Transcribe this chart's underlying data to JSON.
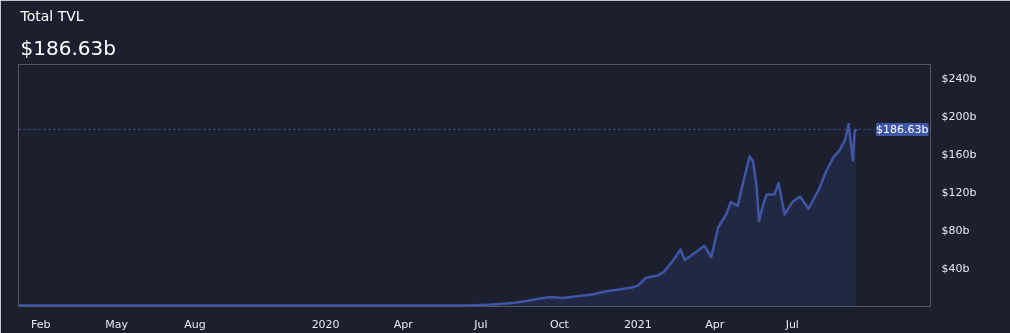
{
  "chart_data": {
    "type": "area",
    "title": "Total TVL",
    "subtitle": "$186.63b",
    "x": [
      "2019-01-06",
      "2019-03-01",
      "2019-05-01",
      "2019-07-01",
      "2019-09-01",
      "2019-11-01",
      "2020-01-01",
      "2020-03-01",
      "2020-05-01",
      "2020-06-15",
      "2020-07-15",
      "2020-08-10",
      "2020-08-25",
      "2020-09-05",
      "2020-09-20",
      "2020-10-05",
      "2020-10-25",
      "2020-11-10",
      "2020-11-25",
      "2020-12-10",
      "2020-12-25",
      "2021-01-01",
      "2021-01-10",
      "2021-01-25",
      "2021-02-01",
      "2021-02-10",
      "2021-02-20",
      "2021-02-25",
      "2021-03-05",
      "2021-03-20",
      "2021-03-28",
      "2021-04-05",
      "2021-04-15",
      "2021-04-20",
      "2021-04-28",
      "2021-05-05",
      "2021-05-12",
      "2021-05-16",
      "2021-05-20",
      "2021-05-23",
      "2021-05-28",
      "2021-06-01",
      "2021-06-10",
      "2021-06-15",
      "2021-06-22",
      "2021-07-01",
      "2021-07-10",
      "2021-07-20",
      "2021-08-01",
      "2021-08-10",
      "2021-08-18",
      "2021-08-25",
      "2021-09-01",
      "2021-09-05",
      "2021-09-08",
      "2021-09-10",
      "2021-09-12",
      "2021-09-14"
    ],
    "series": [
      {
        "color": "#3f55a6",
        "values": [
          1,
          1,
          1,
          1,
          1,
          1,
          1,
          1,
          1,
          1,
          2,
          4,
          6,
          8,
          10,
          9,
          11,
          13,
          16,
          18,
          20,
          22,
          30,
          33,
          37,
          47,
          60,
          49,
          54,
          64,
          52,
          83,
          98,
          110,
          106,
          133,
          158,
          153,
          128,
          90,
          108,
          118,
          118,
          130,
          97,
          110,
          116,
          103,
          123,
          143,
          157,
          164,
          176,
          192,
          169,
          154,
          184,
          187
        ]
      }
    ],
    "ylim": [
      0,
      255
    ],
    "yticks": [
      {
        "value": 40,
        "label": "$40b"
      },
      {
        "value": 80,
        "label": "$80b"
      },
      {
        "value": 120,
        "label": "$120b"
      },
      {
        "value": 160,
        "label": "$160b"
      },
      {
        "value": 200,
        "label": "$200b"
      },
      {
        "value": 240,
        "label": "$240b"
      }
    ],
    "xlim": [
      "2019-01-06",
      "2021-12-10"
    ],
    "xticks": [
      {
        "value": "2019-02-01",
        "label": "Feb"
      },
      {
        "value": "2019-05-01",
        "label": "May"
      },
      {
        "value": "2019-08-01",
        "label": "Aug"
      },
      {
        "value": "2020-01-01",
        "label": "2020"
      },
      {
        "value": "2020-04-01",
        "label": "Apr"
      },
      {
        "value": "2020-07-01",
        "label": "Jul"
      },
      {
        "value": "2020-10-01",
        "label": "Oct"
      },
      {
        "value": "2021-01-01",
        "label": "2021"
      },
      {
        "value": "2021-04-01",
        "label": "Apr"
      },
      {
        "value": "2021-07-01",
        "label": "Jul"
      }
    ],
    "ref_lines": [
      {
        "axis": "y",
        "value": 186.63,
        "label": "$186.63b",
        "color": "#3f55a6",
        "line_style": "dotted"
      }
    ],
    "grid": false
  }
}
